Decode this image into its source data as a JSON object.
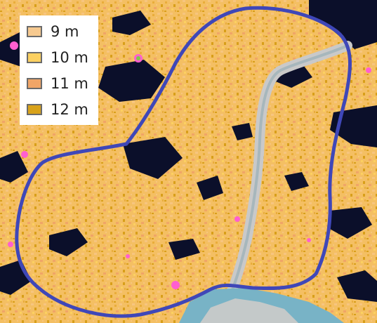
{
  "legend": {
    "items": [
      {
        "label": "9 m",
        "color": "#f6c98f"
      },
      {
        "label": "10 m",
        "color": "#fcd060"
      },
      {
        "label": "11 m",
        "color": "#f0a567"
      },
      {
        "label": "12 m",
        "color": "#d8a21a"
      }
    ]
  },
  "map": {
    "boundary_color": "#3f47b8",
    "dark_patch_color": "#0b0f2a",
    "stream_color": "#c9c9c9",
    "water_color": "#78b3c6",
    "highlight_color": "#ff5fd0"
  }
}
